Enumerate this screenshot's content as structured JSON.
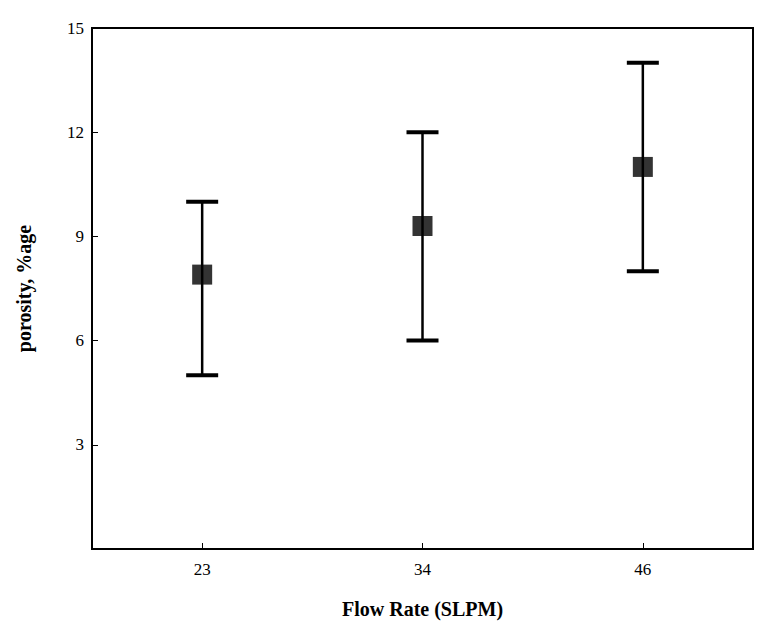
{
  "chart_data": {
    "type": "scatter",
    "x_label": "Flow Rate (SLPM)",
    "y_label": "porosity, %age",
    "categories": [
      "23",
      "34",
      "46"
    ],
    "values": [
      7.9,
      9.3,
      11.0
    ],
    "error_low": [
      5.0,
      6.0,
      8.0
    ],
    "error_high": [
      10.0,
      12.0,
      14.0
    ],
    "color": "#000000",
    "marker": "square",
    "ylim": [
      0,
      15
    ],
    "yticks": [
      3,
      6,
      9,
      12,
      15
    ],
    "grid": false
  }
}
